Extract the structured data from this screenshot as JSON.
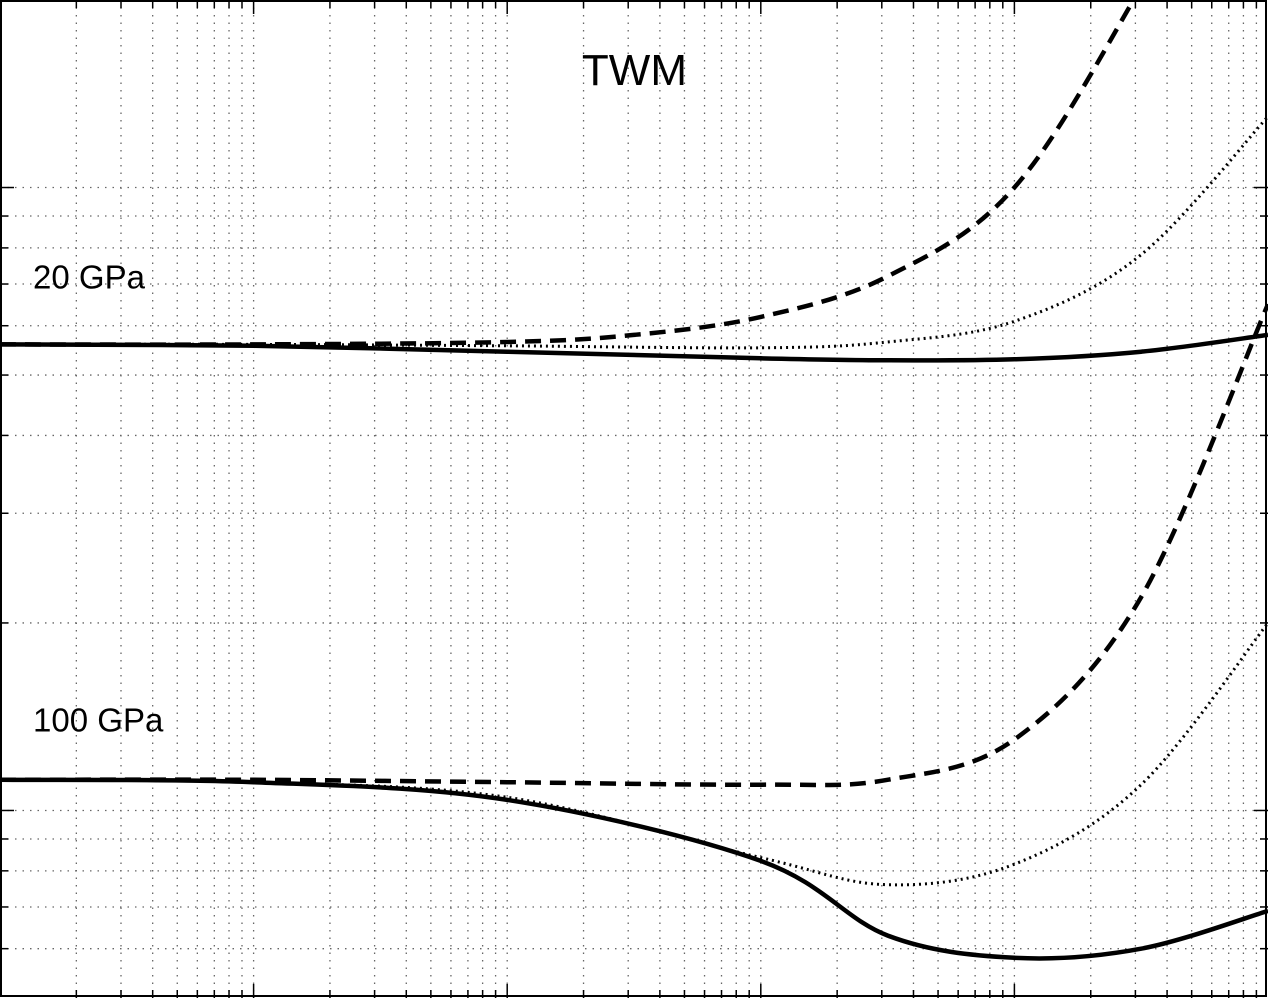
{
  "chart_data": {
    "type": "line",
    "title": "",
    "xlabel": "",
    "ylabel": "",
    "xscale": "log",
    "yscale": "log",
    "xlim": [
      1,
      100000
    ],
    "ylim": [
      0.05,
      2
    ],
    "grid": true,
    "annotations": [
      {
        "id": "model",
        "text": "TWM",
        "x": 316,
        "y": 1.55
      },
      {
        "id": "p20",
        "text": "20 GPa",
        "x": 1.35,
        "y": 0.72
      },
      {
        "id": "p100",
        "text": "100 GPa",
        "x": 1.35,
        "y": 0.14
      }
    ],
    "series": [
      {
        "group": "20 GPa",
        "style": "dashed",
        "x": [
          1,
          10,
          100,
          316,
          1000,
          3160,
          10000,
          31600,
          100000
        ],
        "y": [
          0.56,
          0.56,
          0.565,
          0.58,
          0.62,
          0.72,
          1.0,
          2.1,
          5.0
        ]
      },
      {
        "group": "20 GPa",
        "style": "dotted",
        "x": [
          1,
          10,
          100,
          1000,
          3160,
          10000,
          31600,
          100000
        ],
        "y": [
          0.56,
          0.56,
          0.557,
          0.553,
          0.565,
          0.61,
          0.78,
          1.3
        ]
      },
      {
        "group": "20 GPa",
        "style": "solid",
        "x": [
          1,
          10,
          100,
          1000,
          3160,
          10000,
          31600,
          100000
        ],
        "y": [
          0.56,
          0.557,
          0.545,
          0.532,
          0.528,
          0.53,
          0.545,
          0.58
        ]
      },
      {
        "group": "100 GPa",
        "style": "dashed",
        "x": [
          1,
          10,
          100,
          1000,
          3160,
          10000,
          31600,
          100000
        ],
        "y": [
          0.112,
          0.112,
          0.111,
          0.11,
          0.112,
          0.13,
          0.22,
          0.65
        ]
      },
      {
        "group": "100 GPa",
        "style": "dotted",
        "x": [
          1,
          10,
          100,
          1000,
          3160,
          10000,
          31600,
          100000
        ],
        "y": [
          0.112,
          0.111,
          0.105,
          0.084,
          0.076,
          0.082,
          0.11,
          0.2
        ]
      },
      {
        "group": "100 GPa",
        "style": "solid",
        "x": [
          1,
          10,
          100,
          1000,
          3160,
          10000,
          31600,
          100000
        ],
        "y": [
          0.112,
          0.111,
          0.104,
          0.083,
          0.063,
          0.058,
          0.06,
          0.069
        ]
      }
    ]
  }
}
